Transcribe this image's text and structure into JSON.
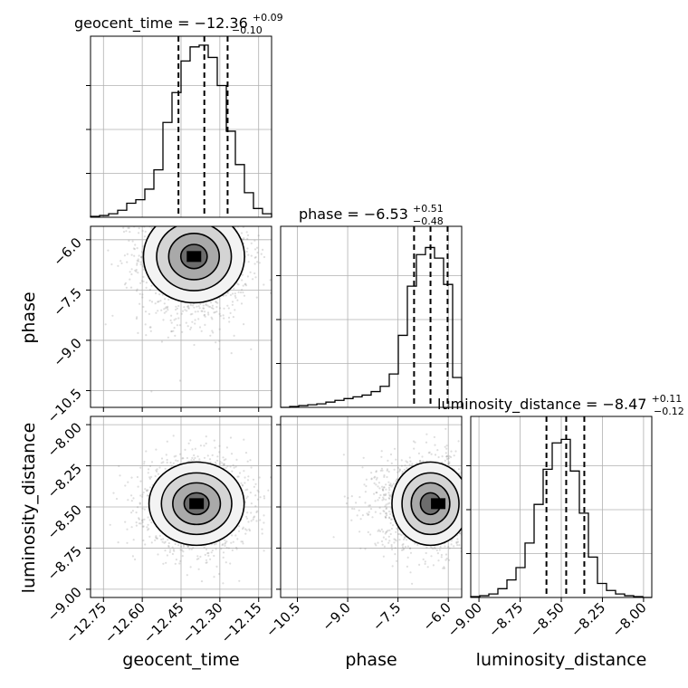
{
  "chart_data": {
    "type": "corner",
    "parameters": [
      {
        "name": "geocent_time",
        "title": "geocent_time = −12.36",
        "title_sup": "+0.09",
        "title_sub": "−0.10",
        "range": [
          -12.8,
          -12.1
        ],
        "ticks": [
          -12.75,
          -12.6,
          -12.45,
          -12.3,
          -12.15
        ],
        "tick_labels": [
          "−12.75",
          "−12.60",
          "−12.45",
          "−12.30",
          "−12.15"
        ],
        "quantiles": [
          -12.46,
          -12.36,
          -12.27
        ],
        "histogram": {
          "bin_edges": [
            -12.8,
            -12.765,
            -12.73,
            -12.695,
            -12.66,
            -12.625,
            -12.59,
            -12.555,
            -12.52,
            -12.485,
            -12.45,
            -12.415,
            -12.38,
            -12.345,
            -12.31,
            -12.275,
            -12.24,
            -12.205,
            -12.17,
            -12.135,
            -12.1
          ],
          "counts": [
            0.005,
            0.01,
            0.02,
            0.04,
            0.08,
            0.1,
            0.16,
            0.27,
            0.54,
            0.71,
            0.89,
            0.97,
            0.98,
            0.91,
            0.75,
            0.49,
            0.3,
            0.14,
            0.05,
            0.02
          ]
        }
      },
      {
        "name": "phase",
        "title": "phase = −6.53",
        "title_sup": "+0.51",
        "title_sub": "−0.48",
        "range": [
          -11.0,
          -5.6
        ],
        "ticks": [
          -10.5,
          -9.0,
          -7.5,
          -6.0
        ],
        "tick_labels": [
          "−10.5",
          "−9.0",
          "−7.5",
          "−6.0"
        ],
        "quantiles": [
          -7.02,
          -6.53,
          -6.02
        ],
        "histogram": {
          "bin_edges": [
            -11.0,
            -10.73,
            -10.46,
            -10.19,
            -9.92,
            -9.65,
            -9.38,
            -9.11,
            -8.84,
            -8.57,
            -8.3,
            -8.03,
            -7.76,
            -7.49,
            -7.22,
            -6.95,
            -6.68,
            -6.41,
            -6.14,
            -5.87,
            -5.6
          ],
          "counts": [
            0.0,
            0.005,
            0.01,
            0.015,
            0.02,
            0.03,
            0.04,
            0.05,
            0.06,
            0.07,
            0.09,
            0.12,
            0.19,
            0.41,
            0.69,
            0.87,
            0.91,
            0.85,
            0.7,
            0.17
          ]
        }
      },
      {
        "name": "luminosity_distance",
        "title": "luminosity_distance = −8.47",
        "title_sup": "+0.11",
        "title_sub": "−0.12",
        "range": [
          -9.05,
          -7.95
        ],
        "ticks": [
          -9.0,
          -8.75,
          -8.5,
          -8.25,
          -8.0
        ],
        "tick_labels": [
          "−9.00",
          "−8.75",
          "−8.50",
          "−8.25",
          "−8.00"
        ],
        "quantiles": [
          -8.59,
          -8.47,
          -8.36
        ],
        "histogram": {
          "bin_edges": [
            -9.05,
            -8.995,
            -8.94,
            -8.885,
            -8.83,
            -8.775,
            -8.72,
            -8.665,
            -8.61,
            -8.555,
            -8.5,
            -8.445,
            -8.39,
            -8.335,
            -8.28,
            -8.225,
            -8.17,
            -8.115,
            -8.06,
            -8.005,
            -7.95
          ],
          "counts": [
            0.005,
            0.01,
            0.02,
            0.05,
            0.1,
            0.17,
            0.31,
            0.53,
            0.73,
            0.88,
            0.9,
            0.72,
            0.48,
            0.23,
            0.08,
            0.04,
            0.02,
            0.01,
            0.005,
            0.0
          ]
        }
      }
    ],
    "pairs": [
      {
        "x": "geocent_time",
        "y": "phase",
        "center": [
          -12.4,
          -6.5
        ],
        "spread": [
          0.085,
          0.6
        ],
        "peak": [
          -12.4,
          -6.5
        ]
      },
      {
        "x": "geocent_time",
        "y": "luminosity_distance",
        "center": [
          -12.39,
          -8.48
        ],
        "spread": [
          0.08,
          0.11
        ],
        "peak": [
          -12.39,
          -8.48
        ]
      },
      {
        "x": "phase",
        "y": "luminosity_distance",
        "center": [
          -6.53,
          -8.48
        ],
        "spread": [
          0.5,
          0.11
        ],
        "peak": [
          -6.3,
          -8.48
        ]
      }
    ],
    "grid": true
  }
}
